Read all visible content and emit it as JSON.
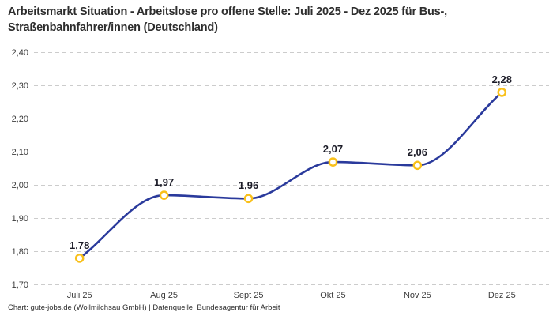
{
  "chart_data": {
    "type": "line",
    "title": "Arbeitsmarkt Situation - Arbeitslose pro offene Stelle: Juli 2025 - Dez 2025 für Bus-, Straßenbahnfahrer/innen (Deutschland)",
    "categories": [
      "Juli 25",
      "Aug 25",
      "Sept 25",
      "Okt 25",
      "Nov 25",
      "Dez 25"
    ],
    "values": [
      1.78,
      1.97,
      1.96,
      2.07,
      2.06,
      2.28
    ],
    "value_labels": [
      "1,78",
      "1,97",
      "1,96",
      "2,07",
      "2,06",
      "2,28"
    ],
    "ytick_labels": [
      "2,40",
      "2,30",
      "2,20",
      "2,10",
      "2,00",
      "1,90",
      "1,80",
      "1,70"
    ],
    "ylim": [
      1.7,
      2.4
    ],
    "ytick_step": 0.1,
    "xlabel": "",
    "ylabel": "",
    "legend_position": "none",
    "grid": "horizontal-dashed"
  },
  "footer": {
    "credit": "Chart: gute-jobs.de (Wollmilchsau GmbH) | Datenquelle: Bundesagentur für Arbeit"
  },
  "colors": {
    "line": "#2a3a9c",
    "marker_stroke": "#f9c01a",
    "marker_fill": "#ffffff",
    "gridline": "#cccccc",
    "title_text": "#2d2d2d",
    "axis_text": "#3c3c3c",
    "background": "#ffffff"
  }
}
